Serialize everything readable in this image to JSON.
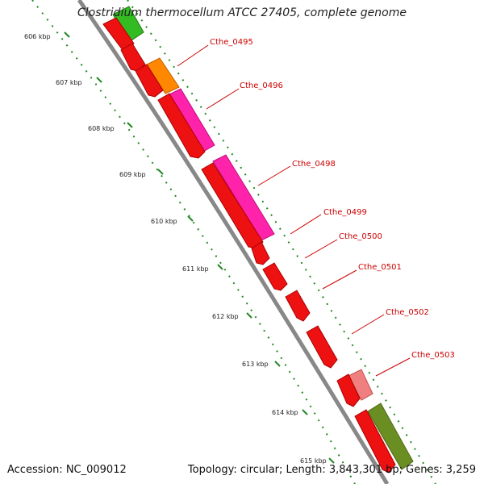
{
  "header": {
    "title": "Clostridium thermocellum ATCC 27405, complete genome"
  },
  "footer": {
    "accession": "Accession: NC_009012",
    "summary": "Topology: circular; Length: 3,843,301 bp; Genes: 3,259"
  },
  "ruler": {
    "ticks": [
      "606 kbp",
      "607 kbp",
      "608 kbp",
      "609 kbp",
      "610 kbp",
      "611 kbp",
      "612 kbp",
      "613 kbp",
      "614 kbp",
      "615 kbp"
    ]
  },
  "gene_labels": [
    "Cthe_0495",
    "Cthe_0496",
    "Cthe_0498",
    "Cthe_0499",
    "Cthe_0500",
    "Cthe_0501",
    "Cthe_0502",
    "Cthe_0503"
  ],
  "colors": {
    "gene_red": "#ee1111",
    "gene_orange": "#ff8800",
    "gene_magenta": "#ff22aa",
    "gene_green": "#33bb22",
    "gene_olive": "#6b8e23",
    "gene_pink": "#f08080",
    "label_red": "#cc0000",
    "backbone": "#888888",
    "tick_green": "#228822"
  }
}
